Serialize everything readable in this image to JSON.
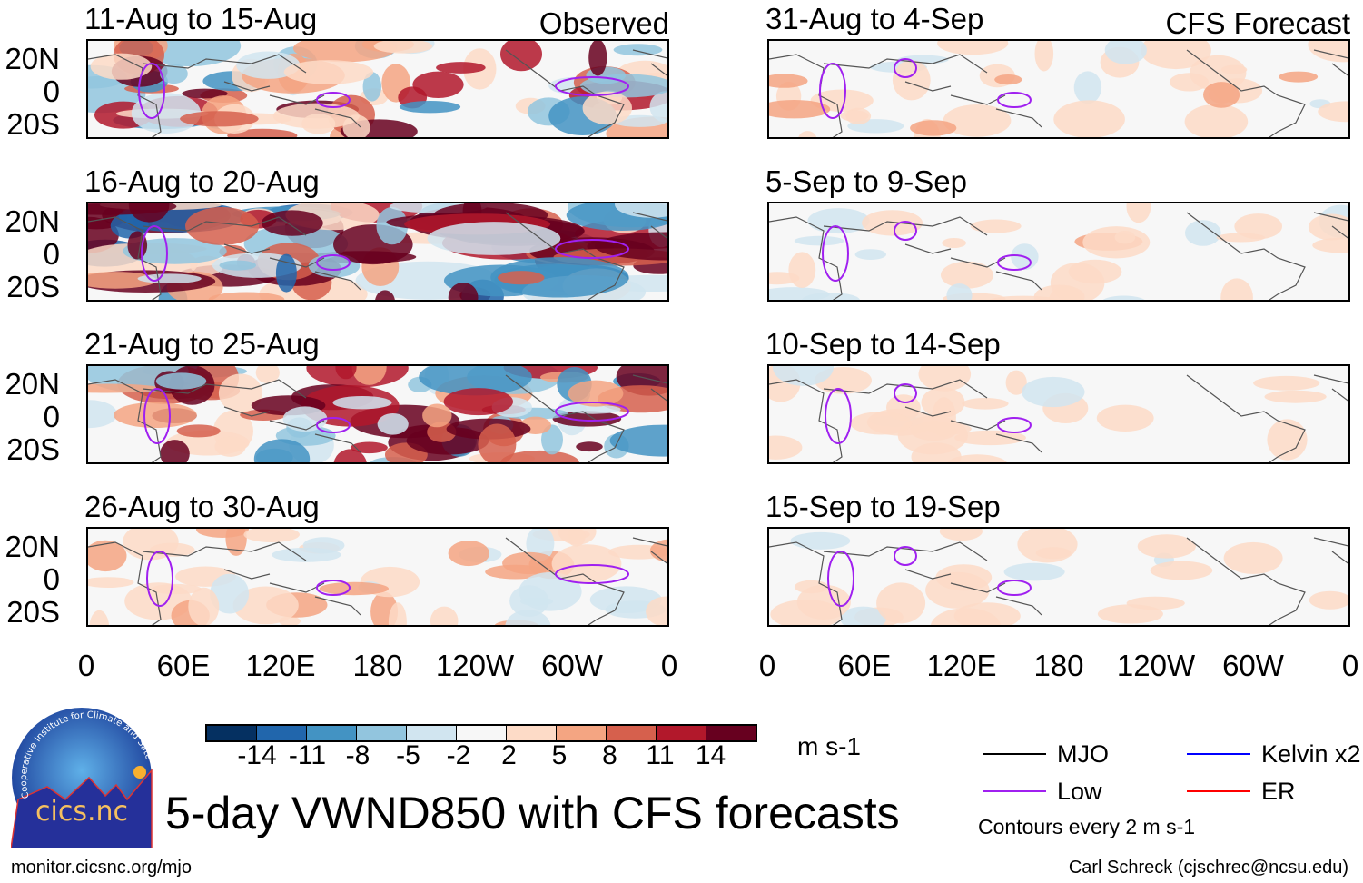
{
  "panels_left": [
    {
      "title": "11-Aug to 15-Aug",
      "tag": "Observed",
      "intensity": 0.8
    },
    {
      "title": "16-Aug to 20-Aug",
      "intensity": 1.2
    },
    {
      "title": "21-Aug to 25-Aug",
      "intensity": 0.9
    },
    {
      "title": "26-Aug to 30-Aug",
      "intensity": 0.35
    }
  ],
  "panels_right": [
    {
      "title": "31-Aug to 4-Sep",
      "tag": "CFS Forecast",
      "intensity": 0.3
    },
    {
      "title": "5-Sep to 9-Sep",
      "intensity": 0.25
    },
    {
      "title": "10-Sep to 14-Sep",
      "intensity": 0.2
    },
    {
      "title": "15-Sep to 19-Sep",
      "intensity": 0.2
    }
  ],
  "lat_labels": [
    "20N",
    "0",
    "20S"
  ],
  "lon_labels": [
    "0",
    "60E",
    "120E",
    "180",
    "120W",
    "60W",
    "0"
  ],
  "colorbar": {
    "colors": [
      "#053061",
      "#2166ac",
      "#4393c3",
      "#92c5de",
      "#d1e5f0",
      "#f7f7f7",
      "#fddbc7",
      "#f4a582",
      "#d6604d",
      "#b2182b",
      "#67001f"
    ],
    "labels": [
      "-14",
      "-11",
      "-8",
      "-5",
      "-2",
      "2",
      "5",
      "8",
      "11",
      "14"
    ],
    "units": "m s-1"
  },
  "title": "5-day VWND850 with CFS forecasts",
  "legend": [
    {
      "label": "MJO",
      "color": "#000000"
    },
    {
      "label": "Kelvin x2",
      "color": "#0000ff"
    },
    {
      "label": "Low",
      "color": "#a020f0"
    },
    {
      "label": "ER",
      "color": "#ff0000"
    }
  ],
  "contours_note": "Contours every 2 m s-1",
  "logo": {
    "text": "cics.nc",
    "ring": "Cooperative Institute for Climate and Satellites"
  },
  "footer_left": "monitor.cicsnc.org/mjo",
  "footer_right": "Carl Schreck (cjschrec@ncsu.edu)"
}
